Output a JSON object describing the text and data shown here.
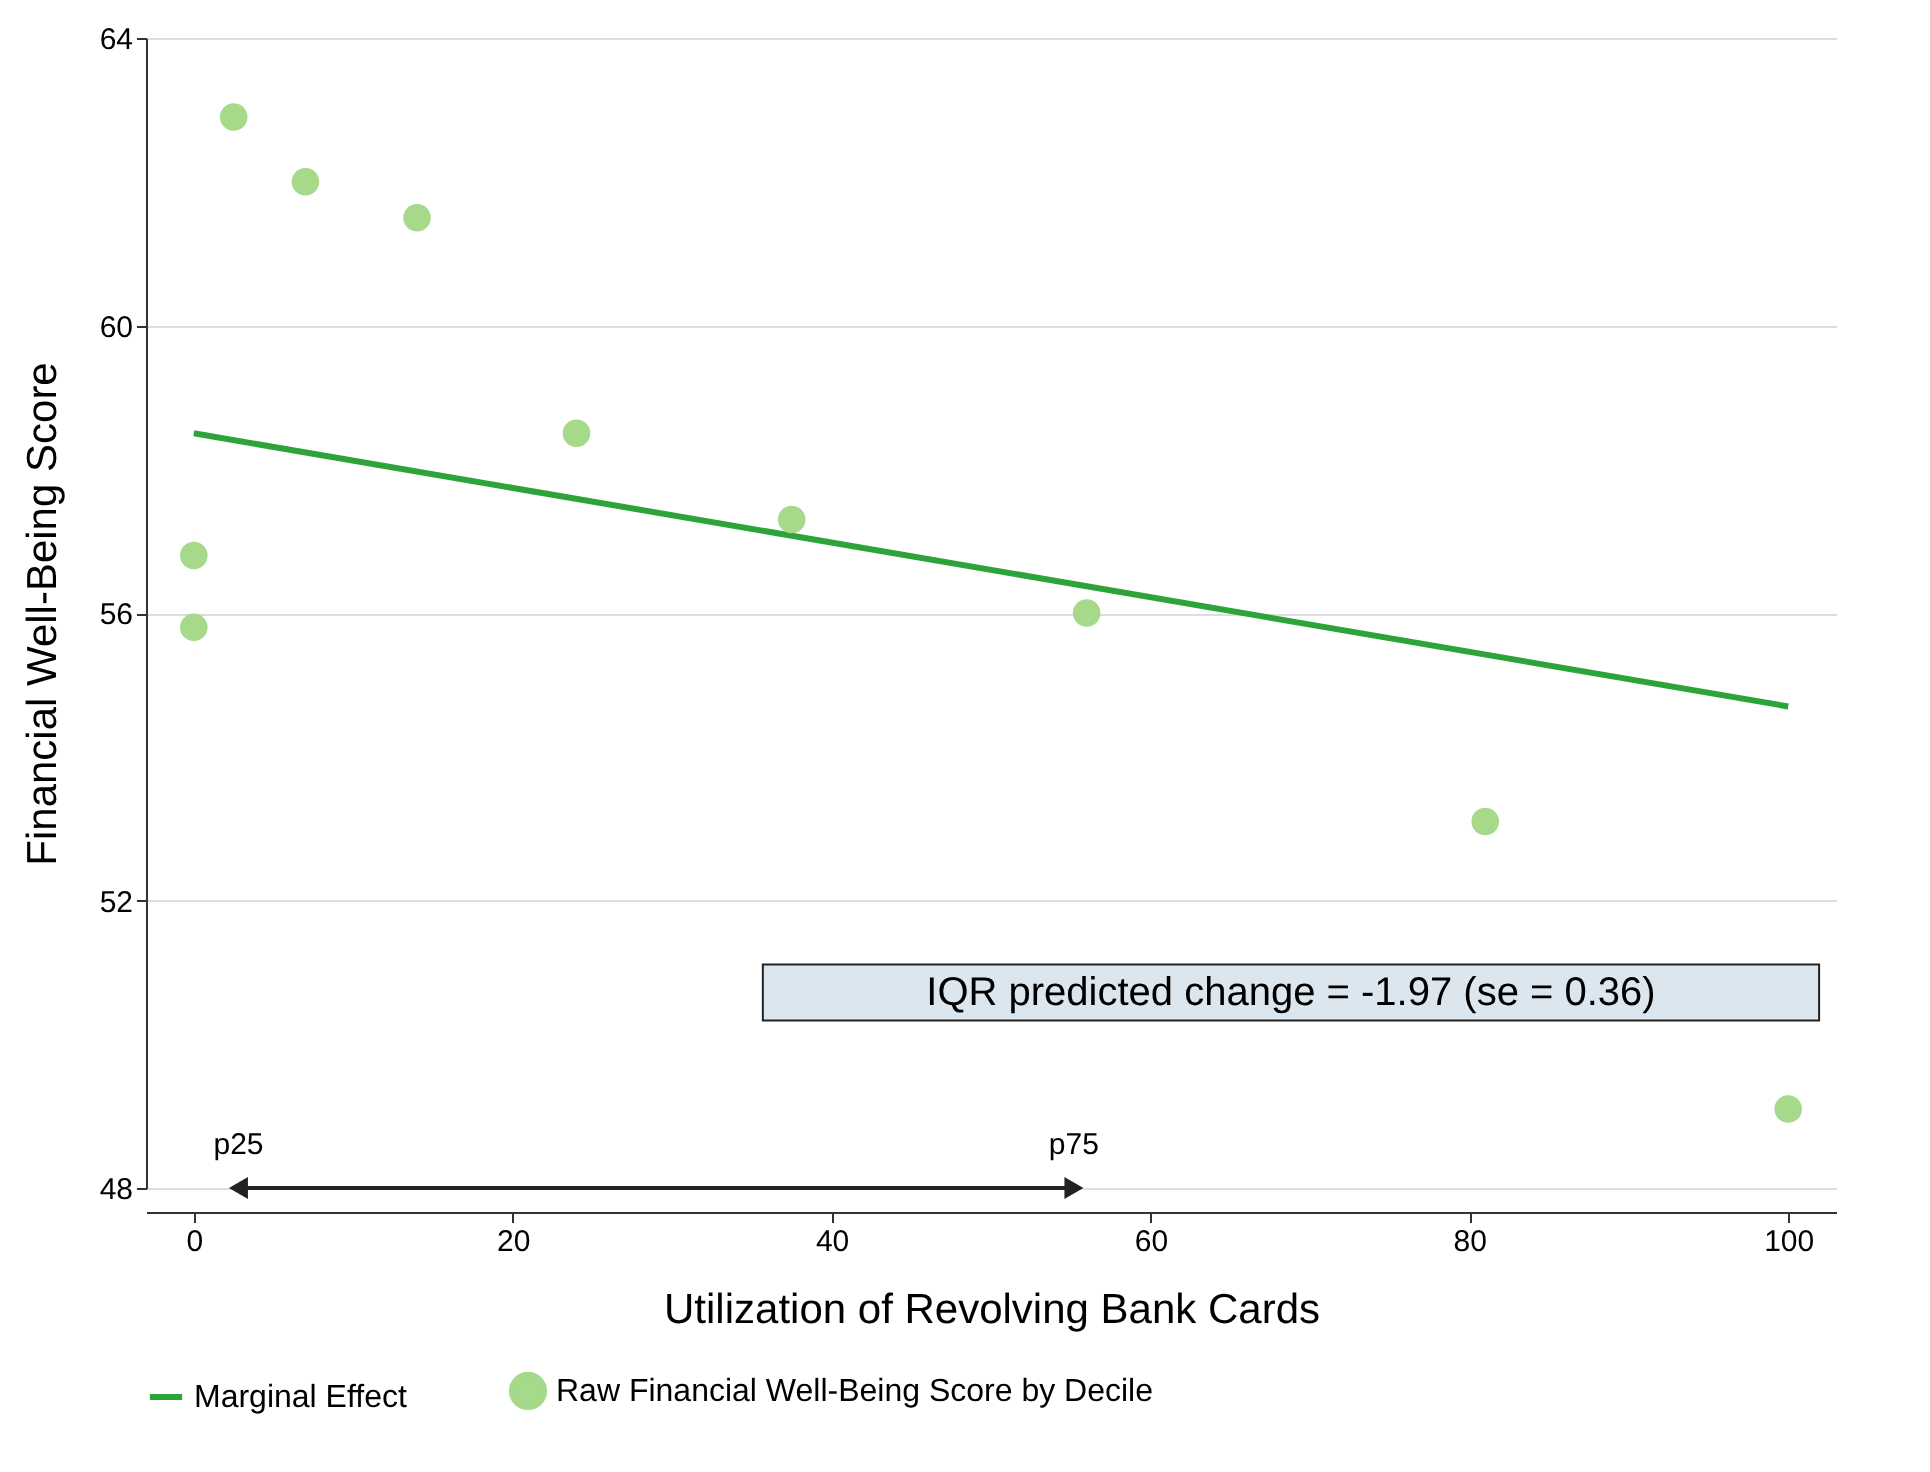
{
  "chart_data": {
    "type": "scatter",
    "xlabel": "Utilization of Revolving Bank Cards",
    "ylabel": "Financial Well-Being Score",
    "xlim": [
      -3,
      103
    ],
    "ylim": [
      48,
      64
    ],
    "xticks": [
      0,
      20,
      40,
      60,
      80,
      100
    ],
    "yticks": [
      48,
      52,
      56,
      60,
      64
    ],
    "grid": "y",
    "legend": "bottom",
    "series": [
      {
        "name": "Marginal Effect",
        "type": "line",
        "color": "#2ca43a",
        "x": [
          0,
          100
        ],
        "values": [
          58.5,
          54.7
        ]
      },
      {
        "name": "Raw Financial Well-Being Score by Decile",
        "marker": "circle",
        "color": "#a6d98a",
        "x": [
          0,
          0,
          2.5,
          7,
          14,
          24,
          37.5,
          56,
          81,
          100
        ],
        "values": [
          56.8,
          55.8,
          62.9,
          62,
          61.5,
          58.5,
          57.3,
          56,
          53.1,
          49.1
        ]
      }
    ],
    "annotations": [
      "IQR predicted change = -1.97 (se = 0.36)",
      {
        "text": "p25",
        "x": 2.8,
        "y": 48
      },
      {
        "text": "p75",
        "x": 55.2,
        "y": 48
      }
    ]
  }
}
